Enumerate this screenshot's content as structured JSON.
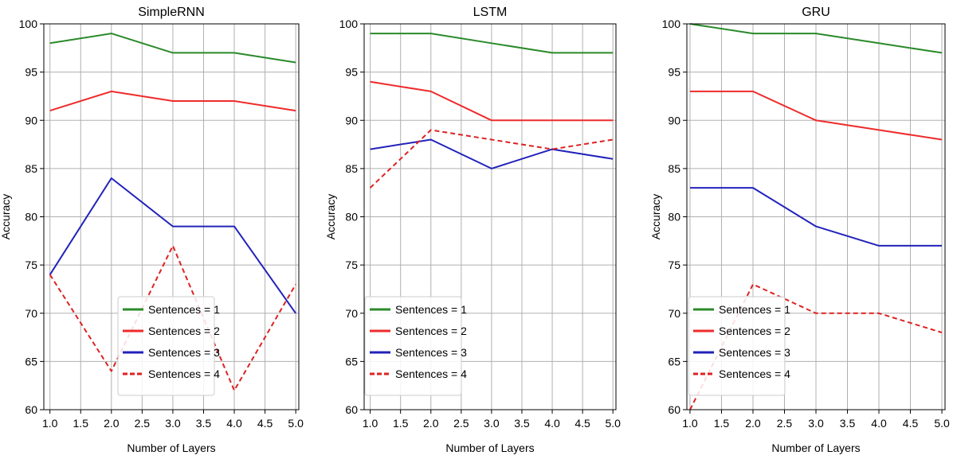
{
  "chart_data": [
    {
      "type": "line",
      "title": "SimpleRNN",
      "xlabel": "Number of Layers",
      "ylabel": "Accuracy",
      "x": [
        1.0,
        2.0,
        3.0,
        4.0,
        5.0
      ],
      "xticks": [
        "1.0",
        "1.5",
        "2.0",
        "2.5",
        "3.0",
        "3.5",
        "4.0",
        "4.5",
        "5.0"
      ],
      "yticks": [
        "60",
        "65",
        "70",
        "75",
        "80",
        "85",
        "90",
        "95",
        "100"
      ],
      "xlim": [
        0.9,
        5.05
      ],
      "ylim": [
        60,
        100
      ],
      "grid": true,
      "legend_position": "lower-center",
      "series": [
        {
          "name": "Sentences = 1",
          "color": "#2a8a2a",
          "dash": "solid",
          "values": [
            98,
            99,
            97,
            97,
            96
          ]
        },
        {
          "name": "Sentences = 2",
          "color": "#ee2b2b",
          "dash": "solid",
          "values": [
            91,
            93,
            92,
            92,
            91
          ]
        },
        {
          "name": "Sentences = 3",
          "color": "#2222bb",
          "dash": "solid",
          "values": [
            74,
            84,
            79,
            79,
            70
          ]
        },
        {
          "name": "Sentences = 4",
          "color": "#dd2222",
          "dash": "dashed",
          "values": [
            74,
            64,
            77,
            62,
            73
          ]
        }
      ]
    },
    {
      "type": "line",
      "title": "LSTM",
      "xlabel": "Number of Layers",
      "ylabel": "Accuracy",
      "x": [
        1.0,
        2.0,
        3.0,
        4.0,
        5.0
      ],
      "xticks": [
        "1.0",
        "1.5",
        "2.0",
        "2.5",
        "3.0",
        "3.5",
        "4.0",
        "4.5",
        "5.0"
      ],
      "yticks": [
        "60",
        "65",
        "70",
        "75",
        "80",
        "85",
        "90",
        "95",
        "100"
      ],
      "xlim": [
        0.9,
        5.05
      ],
      "ylim": [
        60,
        100
      ],
      "grid": true,
      "legend_position": "lower-left",
      "series": [
        {
          "name": "Sentences = 1",
          "color": "#2a8a2a",
          "dash": "solid",
          "values": [
            99,
            99,
            98,
            97,
            97
          ]
        },
        {
          "name": "Sentences = 2",
          "color": "#ee2b2b",
          "dash": "solid",
          "values": [
            94,
            93,
            90,
            90,
            90
          ]
        },
        {
          "name": "Sentences = 3",
          "color": "#2222bb",
          "dash": "solid",
          "values": [
            87,
            88,
            85,
            87,
            86
          ]
        },
        {
          "name": "Sentences = 4",
          "color": "#dd2222",
          "dash": "dashed",
          "values": [
            83,
            89,
            88,
            87,
            88
          ]
        }
      ]
    },
    {
      "type": "line",
      "title": "GRU",
      "xlabel": "Number of Layers",
      "ylabel": "Accuracy",
      "x": [
        1.0,
        2.0,
        3.0,
        4.0,
        5.0
      ],
      "xticks": [
        "1.0",
        "1.5",
        "2.0",
        "2.5",
        "3.0",
        "3.5",
        "4.0",
        "4.5",
        "5.0"
      ],
      "yticks": [
        "60",
        "65",
        "70",
        "75",
        "80",
        "85",
        "90",
        "95",
        "100"
      ],
      "xlim": [
        0.95,
        5.05
      ],
      "ylim": [
        60,
        100
      ],
      "grid": true,
      "legend_position": "lower-left",
      "series": [
        {
          "name": "Sentences = 1",
          "color": "#2a8a2a",
          "dash": "solid",
          "values": [
            100,
            99,
            99,
            98,
            97
          ]
        },
        {
          "name": "Sentences = 2",
          "color": "#ee2b2b",
          "dash": "solid",
          "values": [
            93,
            93,
            90,
            89,
            88
          ]
        },
        {
          "name": "Sentences = 3",
          "color": "#2222bb",
          "dash": "solid",
          "values": [
            83,
            83,
            79,
            77,
            77
          ]
        },
        {
          "name": "Sentences = 4",
          "color": "#dd2222",
          "dash": "dashed",
          "values": [
            60,
            73,
            70,
            70,
            68
          ]
        }
      ]
    }
  ]
}
